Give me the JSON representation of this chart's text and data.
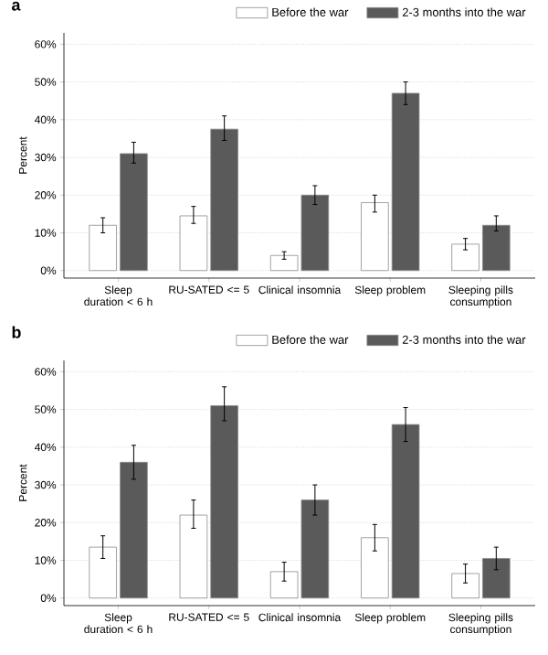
{
  "chart_data": [
    {
      "type": "bar",
      "title": "a",
      "ylabel": "Percent",
      "categories": [
        "Sleep duration < 6 h",
        "RU-SATED <= 5",
        "Clinical insomnia",
        "Sleep problem",
        "Sleeping pills consumption"
      ],
      "series": [
        {
          "name": "Before the war",
          "color": "#ffffff",
          "values": [
            12,
            14.5,
            4,
            18,
            7
          ],
          "errors": [
            [
              10,
              14
            ],
            [
              12.5,
              17
            ],
            [
              3,
              5
            ],
            [
              15.5,
              20
            ],
            [
              5.5,
              8.5
            ]
          ]
        },
        {
          "name": "2-3 months into the war",
          "color": "#5a5a5a",
          "values": [
            31,
            37.5,
            20,
            47,
            12
          ],
          "errors": [
            [
              28.5,
              34
            ],
            [
              34.5,
              41
            ],
            [
              17.5,
              22.5
            ],
            [
              44,
              50
            ],
            [
              10.5,
              14.5
            ]
          ]
        }
      ],
      "ylim": [
        -2,
        63
      ],
      "yticks": [
        {
          "value": 0,
          "label": "0%"
        },
        {
          "value": 10,
          "label": "10%"
        },
        {
          "value": 20,
          "label": "20%"
        },
        {
          "value": 30,
          "label": "30%"
        },
        {
          "value": 40,
          "label": "40%"
        },
        {
          "value": 50,
          "label": "50%"
        },
        {
          "value": 60,
          "label": "60%"
        }
      ],
      "grid": "y",
      "legend": "top right"
    },
    {
      "type": "bar",
      "title": "b",
      "ylabel": "Percent",
      "categories": [
        "Sleep duration < 6 h",
        "RU-SATED <= 5",
        "Clinical insomnia",
        "Sleep problem",
        "Sleeping pills consumption"
      ],
      "series": [
        {
          "name": "Before the war",
          "color": "#ffffff",
          "values": [
            13.5,
            22,
            7,
            16,
            6.5
          ],
          "errors": [
            [
              10.5,
              16.5
            ],
            [
              18.5,
              26
            ],
            [
              4.5,
              9.5
            ],
            [
              12.5,
              19.5
            ],
            [
              4,
              9
            ]
          ]
        },
        {
          "name": "2-3 months into the war",
          "color": "#5a5a5a",
          "values": [
            36,
            51,
            26,
            46,
            10.5
          ],
          "errors": [
            [
              31.5,
              40.5
            ],
            [
              47,
              56
            ],
            [
              22,
              30
            ],
            [
              41.5,
              50.5
            ],
            [
              7.5,
              13.5
            ]
          ]
        }
      ],
      "ylim": [
        -2,
        63
      ],
      "yticks": [
        {
          "value": 0,
          "label": "0%"
        },
        {
          "value": 10,
          "label": "10%"
        },
        {
          "value": 20,
          "label": "20%"
        },
        {
          "value": 30,
          "label": "30%"
        },
        {
          "value": 40,
          "label": "40%"
        },
        {
          "value": 50,
          "label": "50%"
        },
        {
          "value": 60,
          "label": "60%"
        }
      ],
      "grid": "y",
      "legend": "top right"
    }
  ]
}
